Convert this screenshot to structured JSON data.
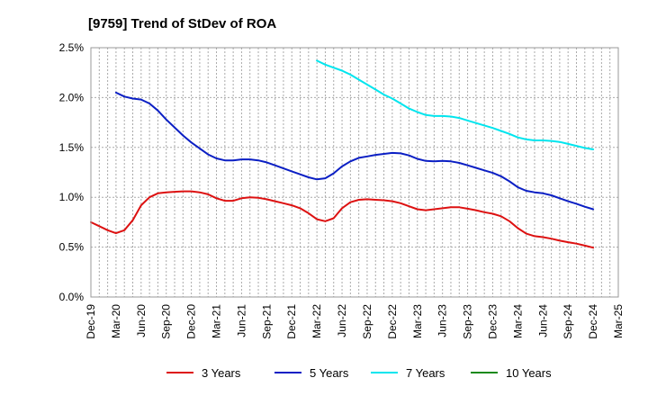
{
  "chart_data": {
    "type": "line",
    "title": "[9759]  Trend of StDev of ROA",
    "xlabel": "",
    "ylabel": "",
    "ylim": [
      0,
      2.5
    ],
    "yticks": [
      "0.0%",
      "0.5%",
      "1.0%",
      "1.5%",
      "2.0%",
      "2.5%"
    ],
    "xticks": [
      "Dec-19",
      "Mar-20",
      "Jun-20",
      "Sep-20",
      "Dec-20",
      "Mar-21",
      "Jun-21",
      "Sep-21",
      "Dec-21",
      "Mar-22",
      "Jun-22",
      "Sep-22",
      "Dec-22",
      "Mar-23",
      "Jun-23",
      "Sep-23",
      "Dec-23",
      "Mar-24",
      "Jun-24",
      "Sep-24",
      "Dec-24",
      "Mar-25"
    ],
    "grid": true,
    "legend_position": "bottom",
    "series": [
      {
        "name": "3 Years",
        "color": "#dd1111",
        "points": [
          [
            "Dec-19",
            0.75
          ],
          [
            "Jan-20",
            0.71
          ],
          [
            "Feb-20",
            0.67
          ],
          [
            "Mar-20",
            0.64
          ],
          [
            "Apr-20",
            0.67
          ],
          [
            "May-20",
            0.77
          ],
          [
            "Jun-20",
            0.92
          ],
          [
            "Jul-20",
            1.0
          ],
          [
            "Aug-20",
            1.04
          ],
          [
            "Sep-20",
            1.05
          ],
          [
            "Oct-20",
            1.055
          ],
          [
            "Nov-20",
            1.06
          ],
          [
            "Dec-20",
            1.06
          ],
          [
            "Jan-21",
            1.05
          ],
          [
            "Feb-21",
            1.03
          ],
          [
            "Mar-21",
            0.99
          ],
          [
            "Apr-21",
            0.965
          ],
          [
            "May-21",
            0.965
          ],
          [
            "Jun-21",
            0.99
          ],
          [
            "Jul-21",
            1.0
          ],
          [
            "Aug-21",
            0.995
          ],
          [
            "Sep-21",
            0.98
          ],
          [
            "Oct-21",
            0.96
          ],
          [
            "Nov-21",
            0.94
          ],
          [
            "Dec-21",
            0.92
          ],
          [
            "Jan-22",
            0.89
          ],
          [
            "Feb-22",
            0.84
          ],
          [
            "Mar-22",
            0.78
          ],
          [
            "Apr-22",
            0.76
          ],
          [
            "May-22",
            0.79
          ],
          [
            "Jun-22",
            0.89
          ],
          [
            "Jul-22",
            0.95
          ],
          [
            "Aug-22",
            0.975
          ],
          [
            "Sep-22",
            0.98
          ],
          [
            "Oct-22",
            0.975
          ],
          [
            "Nov-22",
            0.97
          ],
          [
            "Dec-22",
            0.96
          ],
          [
            "Jan-23",
            0.94
          ],
          [
            "Feb-23",
            0.91
          ],
          [
            "Mar-23",
            0.88
          ],
          [
            "Apr-23",
            0.87
          ],
          [
            "May-23",
            0.88
          ],
          [
            "Jun-23",
            0.89
          ],
          [
            "Jul-23",
            0.9
          ],
          [
            "Aug-23",
            0.9
          ],
          [
            "Sep-23",
            0.885
          ],
          [
            "Oct-23",
            0.87
          ],
          [
            "Nov-23",
            0.85
          ],
          [
            "Dec-23",
            0.835
          ],
          [
            "Jan-24",
            0.81
          ],
          [
            "Feb-24",
            0.76
          ],
          [
            "Mar-24",
            0.69
          ],
          [
            "Apr-24",
            0.635
          ],
          [
            "May-24",
            0.61
          ],
          [
            "Jun-24",
            0.6
          ],
          [
            "Jul-24",
            0.585
          ],
          [
            "Aug-24",
            0.565
          ],
          [
            "Sep-24",
            0.55
          ],
          [
            "Oct-24",
            0.535
          ],
          [
            "Nov-24",
            0.515
          ],
          [
            "Dec-24",
            0.495
          ]
        ]
      },
      {
        "name": "5 Years",
        "color": "#0b1fc4",
        "points": [
          [
            "Mar-20",
            2.05
          ],
          [
            "Apr-20",
            2.01
          ],
          [
            "May-20",
            1.99
          ],
          [
            "Jun-20",
            1.98
          ],
          [
            "Jul-20",
            1.94
          ],
          [
            "Aug-20",
            1.87
          ],
          [
            "Sep-20",
            1.78
          ],
          [
            "Oct-20",
            1.7
          ],
          [
            "Nov-20",
            1.62
          ],
          [
            "Dec-20",
            1.55
          ],
          [
            "Jan-21",
            1.49
          ],
          [
            "Feb-21",
            1.43
          ],
          [
            "Mar-21",
            1.39
          ],
          [
            "Apr-21",
            1.37
          ],
          [
            "May-21",
            1.37
          ],
          [
            "Jun-21",
            1.38
          ],
          [
            "Jul-21",
            1.38
          ],
          [
            "Aug-21",
            1.37
          ],
          [
            "Sep-21",
            1.35
          ],
          [
            "Oct-21",
            1.32
          ],
          [
            "Nov-21",
            1.29
          ],
          [
            "Dec-21",
            1.26
          ],
          [
            "Jan-22",
            1.23
          ],
          [
            "Feb-22",
            1.2
          ],
          [
            "Mar-22",
            1.18
          ],
          [
            "Apr-22",
            1.19
          ],
          [
            "May-22",
            1.24
          ],
          [
            "Jun-22",
            1.31
          ],
          [
            "Jul-22",
            1.36
          ],
          [
            "Aug-22",
            1.395
          ],
          [
            "Sep-22",
            1.41
          ],
          [
            "Oct-22",
            1.425
          ],
          [
            "Nov-22",
            1.435
          ],
          [
            "Dec-22",
            1.445
          ],
          [
            "Jan-23",
            1.44
          ],
          [
            "Feb-23",
            1.42
          ],
          [
            "Mar-23",
            1.385
          ],
          [
            "Apr-23",
            1.365
          ],
          [
            "May-23",
            1.36
          ],
          [
            "Jun-23",
            1.365
          ],
          [
            "Jul-23",
            1.36
          ],
          [
            "Aug-23",
            1.345
          ],
          [
            "Sep-23",
            1.32
          ],
          [
            "Oct-23",
            1.295
          ],
          [
            "Nov-23",
            1.27
          ],
          [
            "Dec-23",
            1.245
          ],
          [
            "Jan-24",
            1.21
          ],
          [
            "Feb-24",
            1.16
          ],
          [
            "Mar-24",
            1.1
          ],
          [
            "Apr-24",
            1.065
          ],
          [
            "May-24",
            1.05
          ],
          [
            "Jun-24",
            1.04
          ],
          [
            "Jul-24",
            1.02
          ],
          [
            "Aug-24",
            0.99
          ],
          [
            "Sep-24",
            0.96
          ],
          [
            "Oct-24",
            0.935
          ],
          [
            "Nov-24",
            0.905
          ],
          [
            "Dec-24",
            0.88
          ]
        ]
      },
      {
        "name": "7 Years",
        "color": "#00e5ee",
        "points": [
          [
            "Mar-22",
            2.37
          ],
          [
            "Apr-22",
            2.33
          ],
          [
            "May-22",
            2.3
          ],
          [
            "Jun-22",
            2.27
          ],
          [
            "Jul-22",
            2.23
          ],
          [
            "Aug-22",
            2.18
          ],
          [
            "Sep-22",
            2.13
          ],
          [
            "Oct-22",
            2.08
          ],
          [
            "Nov-22",
            2.03
          ],
          [
            "Dec-22",
            1.99
          ],
          [
            "Jan-23",
            1.94
          ],
          [
            "Feb-23",
            1.89
          ],
          [
            "Mar-23",
            1.855
          ],
          [
            "Apr-23",
            1.825
          ],
          [
            "May-23",
            1.815
          ],
          [
            "Jun-23",
            1.815
          ],
          [
            "Jul-23",
            1.81
          ],
          [
            "Aug-23",
            1.795
          ],
          [
            "Sep-23",
            1.77
          ],
          [
            "Oct-23",
            1.745
          ],
          [
            "Nov-23",
            1.72
          ],
          [
            "Dec-23",
            1.695
          ],
          [
            "Jan-24",
            1.665
          ],
          [
            "Feb-24",
            1.635
          ],
          [
            "Mar-24",
            1.6
          ],
          [
            "Apr-24",
            1.58
          ],
          [
            "May-24",
            1.57
          ],
          [
            "Jun-24",
            1.57
          ],
          [
            "Jul-24",
            1.565
          ],
          [
            "Aug-24",
            1.555
          ],
          [
            "Sep-24",
            1.535
          ],
          [
            "Oct-24",
            1.515
          ],
          [
            "Nov-24",
            1.495
          ],
          [
            "Dec-24",
            1.48
          ]
        ]
      },
      {
        "name": "10 Years",
        "color": "#1a8a1a",
        "points": []
      }
    ]
  }
}
